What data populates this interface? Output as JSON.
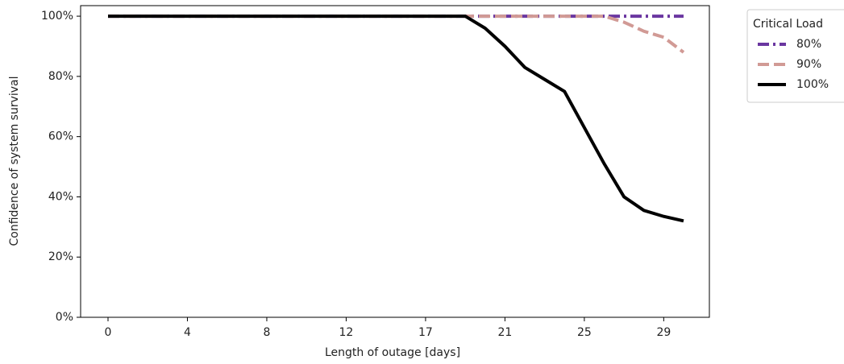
{
  "chart_data": {
    "type": "line",
    "x_label": "Length of outage [days]",
    "y_label": "Confidence of system survival",
    "categories": [
      "0",
      null,
      null,
      null,
      "4",
      null,
      null,
      null,
      "8",
      null,
      null,
      null,
      "12",
      null,
      null,
      null,
      "17",
      null,
      null,
      null,
      "21",
      null,
      null,
      null,
      "25",
      null,
      null,
      null,
      "29",
      null
    ],
    "series": [
      {
        "name": "80%",
        "color": "#6a36a0",
        "linestyle": "dashdot",
        "values": [
          100,
          100,
          100,
          100,
          100,
          100,
          100,
          100,
          100,
          100,
          100,
          100,
          100,
          100,
          100,
          100,
          100,
          100,
          100,
          100,
          100,
          100,
          100,
          100,
          100,
          100,
          100,
          100,
          100,
          100
        ]
      },
      {
        "name": "90%",
        "color": "#d19a95",
        "linestyle": "dashed",
        "values": [
          100,
          100,
          100,
          100,
          100,
          100,
          100,
          100,
          100,
          100,
          100,
          100,
          100,
          100,
          100,
          100,
          100,
          100,
          100,
          100,
          100,
          100,
          100,
          100,
          100,
          100,
          98,
          95,
          93,
          88
        ]
      },
      {
        "name": "100%",
        "color": "#000000",
        "linestyle": "solid",
        "values": [
          100,
          100,
          100,
          100,
          100,
          100,
          100,
          100,
          100,
          100,
          100,
          100,
          100,
          100,
          100,
          100,
          100,
          100,
          100,
          96,
          90,
          83,
          79,
          75,
          63,
          51,
          40,
          35.5,
          33.5,
          32
        ]
      }
    ],
    "ylim": [
      0,
      103.5
    ],
    "yticks": [
      {
        "value": 0,
        "label": "0%"
      },
      {
        "value": 20,
        "label": "20%"
      },
      {
        "value": 40,
        "label": "40%"
      },
      {
        "value": 60,
        "label": "60%"
      },
      {
        "value": 80,
        "label": "80%"
      },
      {
        "value": 100,
        "label": "100%"
      }
    ],
    "legend_title": "Critical Load",
    "legend": "outside right"
  }
}
